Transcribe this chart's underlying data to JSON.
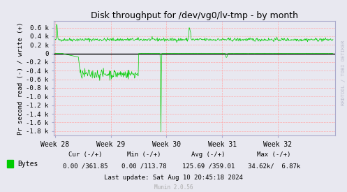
{
  "title": "Disk throughput for /dev/vg0/lv-tmp - by month",
  "ylabel": "Pr second read (-) / write (+)",
  "bg_color": "#e8e8f0",
  "plot_bg_color": "#e8e8f0",
  "grid_color": "#ffaaaa",
  "line_color": "#00cc00",
  "zero_line_color": "#000000",
  "ylim": [
    -1900,
    750
  ],
  "yticks": [
    -1800,
    -1600,
    -1400,
    -1200,
    -1000,
    -800,
    -600,
    -400,
    -200,
    0,
    200,
    400,
    600
  ],
  "ytick_labels": [
    "-1.8 k",
    "-1.6 k",
    "-1.4 k",
    "-1.2 k",
    "-1.0 k",
    "-0.8 k",
    "-0.6 k",
    "-0.4 k",
    "-0.2 k",
    "0",
    "0.2 k",
    "0.4 k",
    "0.6 k"
  ],
  "week_labels": [
    "Week 28",
    "Week 29",
    "Week 30",
    "Week 31",
    "Week 32"
  ],
  "legend_label": "Bytes",
  "legend_color": "#00cc00",
  "cur_label": "Cur (-/+)",
  "min_label": "Min (-/+)",
  "avg_label": "Avg (-/+)",
  "max_label": "Max (-/+)",
  "cur_val": "0.00 /361.85",
  "min_val": "0.00 /113.78",
  "avg_val": "125.69 /359.01",
  "max_val": "34.62k/  6.87k",
  "last_update": "Last update: Sat Aug 10 20:45:18 2024",
  "munin_version": "Munin 2.0.56",
  "watermark": "RRDTOOL / TOBI OETIKER"
}
